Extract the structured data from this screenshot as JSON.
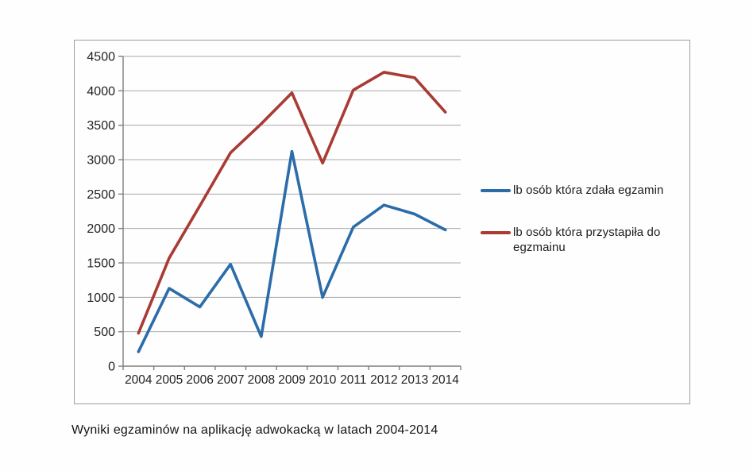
{
  "caption": "Wyniki egzaminów na aplikację adwokacką w latach 2004-2014",
  "colors": {
    "grid": "#a8a8a8",
    "axis": "#7f7f7f",
    "tick": "#7f7f7f",
    "frame": "#9e9e9e",
    "text": "#1f1f1f"
  },
  "chart_data": {
    "type": "line",
    "title": "",
    "xlabel": "",
    "ylabel": "",
    "categories": [
      "2004",
      "2005",
      "2006",
      "2007",
      "2008",
      "2009",
      "2010",
      "2011",
      "2012",
      "2013",
      "2014"
    ],
    "series": [
      {
        "name": "lb osób która zdała egzamin",
        "color": "#2b6ca9",
        "values": [
          210,
          1130,
          860,
          1480,
          430,
          3120,
          1000,
          2020,
          2340,
          2210,
          1980
        ]
      },
      {
        "name": "lb osób która przystapiła do egzmainu",
        "color": "#a93b35",
        "values": [
          480,
          1570,
          2330,
          3100,
          3520,
          3970,
          2950,
          4010,
          4270,
          4190,
          3690
        ]
      }
    ],
    "ylim": [
      0,
      4500
    ],
    "ytick_step": 500,
    "yticks": [
      0,
      500,
      1000,
      1500,
      2000,
      2500,
      3000,
      3500,
      4000,
      4500
    ],
    "grid": true,
    "legend_position": "right"
  }
}
